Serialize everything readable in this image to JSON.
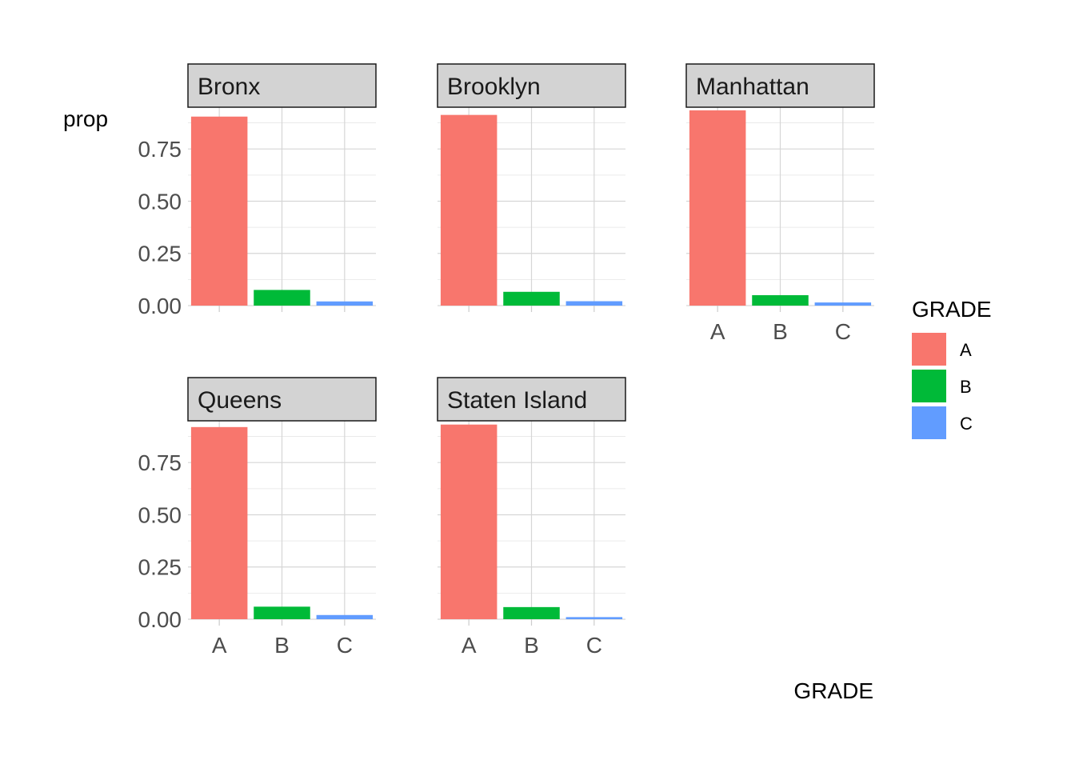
{
  "chart_data": {
    "type": "bar",
    "title": "",
    "xlabel": "GRADE",
    "ylabel": "prop",
    "ylim": [
      0,
      0.95
    ],
    "yticks": [
      0,
      0.25,
      0.5,
      0.75
    ],
    "ytick_labels": [
      "0.00",
      "0.25",
      "0.50",
      "0.75"
    ],
    "categories": [
      "A",
      "B",
      "C"
    ],
    "grid": true,
    "legend": {
      "title": "GRADE",
      "placement": "right",
      "entries": [
        {
          "label": "A",
          "color": "#F8766D"
        },
        {
          "label": "B",
          "color": "#00BA38"
        },
        {
          "label": "C",
          "color": "#619CFF"
        }
      ]
    },
    "colors": {
      "A": "#F8766D",
      "B": "#00BA38",
      "C": "#619CFF"
    },
    "facets": [
      {
        "name": "Bronx",
        "values": [
          0.905,
          0.075,
          0.02
        ]
      },
      {
        "name": "Brooklyn",
        "values": [
          0.913,
          0.066,
          0.021
        ]
      },
      {
        "name": "Manhattan",
        "values": [
          0.935,
          0.05,
          0.015
        ]
      },
      {
        "name": "Queens",
        "values": [
          0.92,
          0.06,
          0.02
        ]
      },
      {
        "name": "Staten Island",
        "values": [
          0.932,
          0.058,
          0.01
        ]
      }
    ]
  }
}
